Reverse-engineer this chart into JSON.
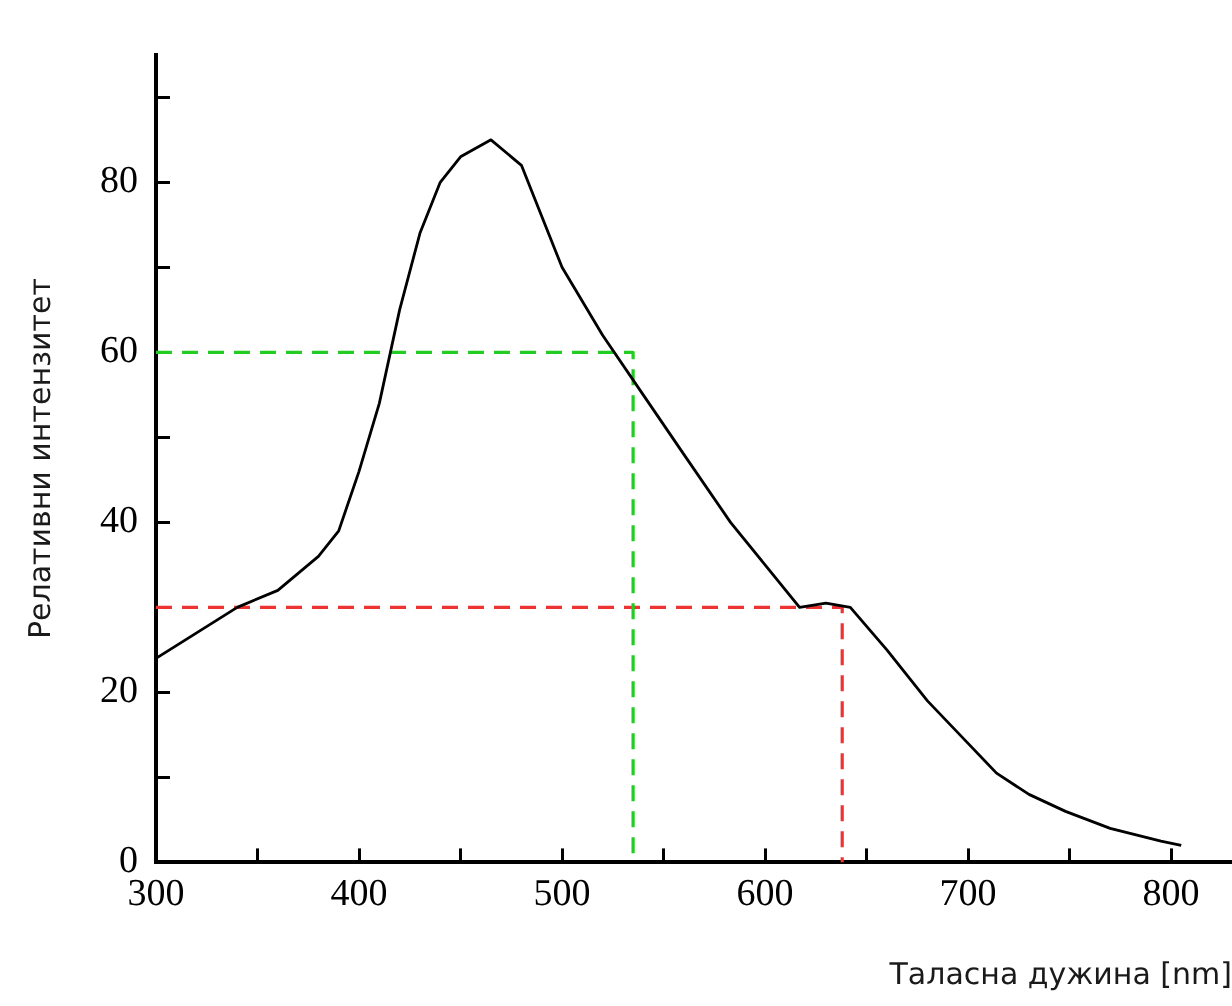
{
  "chart_data": {
    "type": "line",
    "xlabel": "Таласна дужина [nm]",
    "ylabel": "Релативни интензитет",
    "xlim": [
      300,
      830
    ],
    "xticks": [
      300,
      {
        "value": 350,
        "label": null
      },
      400,
      {
        "value": 450,
        "label": null
      },
      500,
      {
        "value": 550,
        "label": null
      },
      600,
      {
        "value": 650,
        "label": null
      },
      700,
      {
        "value": 750,
        "label": null
      },
      800
    ],
    "ylim": [
      0,
      95
    ],
    "yticks": [
      0,
      {
        "value": 10,
        "label": null
      },
      20,
      {
        "value": 30,
        "label": null
      },
      40,
      {
        "value": 50,
        "label": null
      },
      60,
      {
        "value": 70,
        "label": null
      },
      80,
      {
        "value": 90,
        "label": null
      }
    ],
    "grid": false,
    "legend": false,
    "marker": "none",
    "series": [
      {
        "color": "#000000",
        "line_style": "solid",
        "x": [
          300,
          320,
          340,
          360,
          380,
          390,
          400,
          410,
          420,
          430,
          440,
          450,
          465,
          480,
          500,
          520,
          540,
          560,
          583,
          600,
          617,
          630,
          642,
          660,
          680,
          700,
          714,
          730,
          748,
          770,
          795,
          805
        ],
        "values": [
          24,
          27,
          30,
          32,
          36,
          39,
          46,
          54,
          65,
          74,
          80,
          83,
          85,
          82,
          70,
          62,
          55,
          48,
          40,
          35,
          30,
          30.5,
          30,
          25,
          19,
          14,
          10.5,
          8,
          6,
          4,
          2.5,
          2
        ]
      },
      {
        "color": "#22cc22",
        "line_style": "dashed",
        "x": [
          300,
          535,
          535
        ],
        "values": [
          60,
          60,
          0
        ]
      },
      {
        "color": "#ee3333",
        "line_style": "dashed",
        "x": [
          300,
          638,
          638
        ],
        "values": [
          30,
          30,
          0
        ]
      }
    ]
  }
}
